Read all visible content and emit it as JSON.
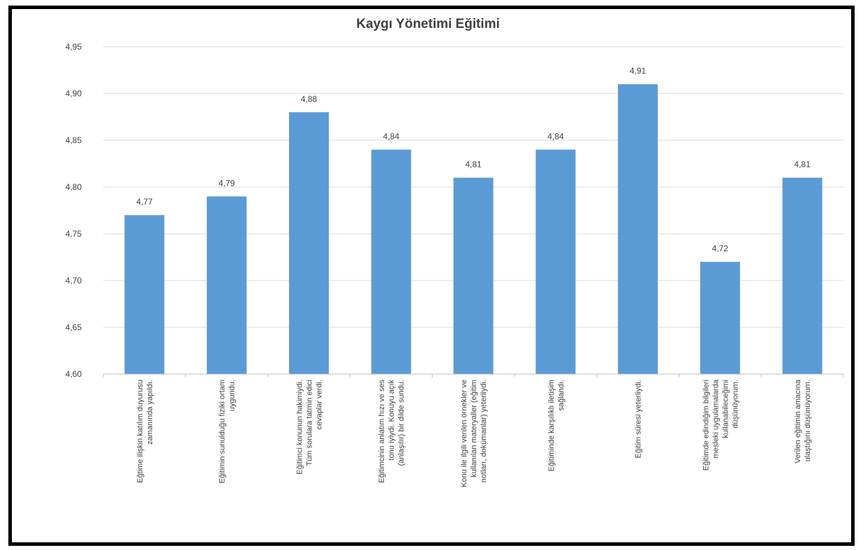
{
  "chart_data": {
    "type": "bar",
    "title": "Kaygı Yönetimi Eğitimi",
    "xlabel": "",
    "ylabel": "",
    "ylim": [
      4.6,
      4.95
    ],
    "yticks": [
      "4,60",
      "4,65",
      "4,70",
      "4,75",
      "4,80",
      "4,85",
      "4,90",
      "4,95"
    ],
    "grid": true,
    "bar_color": "#5b9bd5",
    "categories": [
      [
        "Eğtime ilişkin katılım duyurusu",
        "zamanında yapıldı."
      ],
      [
        "Eğitimin sunulduğu fiziki ortam",
        "uygundu."
      ],
      [
        "Eğitimci konunun hakimiydi.",
        "Tüm sorulara tatmin edici",
        "cevaplar verdi."
      ],
      [
        "Eğitimcinin anlatım hızı ve ses",
        "tonu iyiydi. Konuyu açık",
        "(anlaşılır) bir dilde sundu."
      ],
      [
        "Konu ile ilgili verilen örnekler ve",
        "kullanılan materyaller (eğitim",
        "notları, dokümanlar) yeterliydi."
      ],
      [
        "Eğitiminde karşılıklı iletişim",
        "sağlandı."
      ],
      [
        "Eğitim süresi yeterliydi."
      ],
      [
        "Eğitimde edindiğim bilgileri",
        "mesleki uygulamalarda",
        "kullanabileceğimi",
        "düşünüyorum."
      ],
      [
        "Verilen eğitimin amacına",
        "ulaştığını düşünüyorum."
      ]
    ],
    "values": [
      4.77,
      4.79,
      4.88,
      4.84,
      4.81,
      4.84,
      4.91,
      4.72,
      4.81
    ],
    "value_labels": [
      "4,77",
      "4,79",
      "4,88",
      "4,84",
      "4,81",
      "4,84",
      "4,91",
      "4,72",
      "4,81"
    ]
  }
}
